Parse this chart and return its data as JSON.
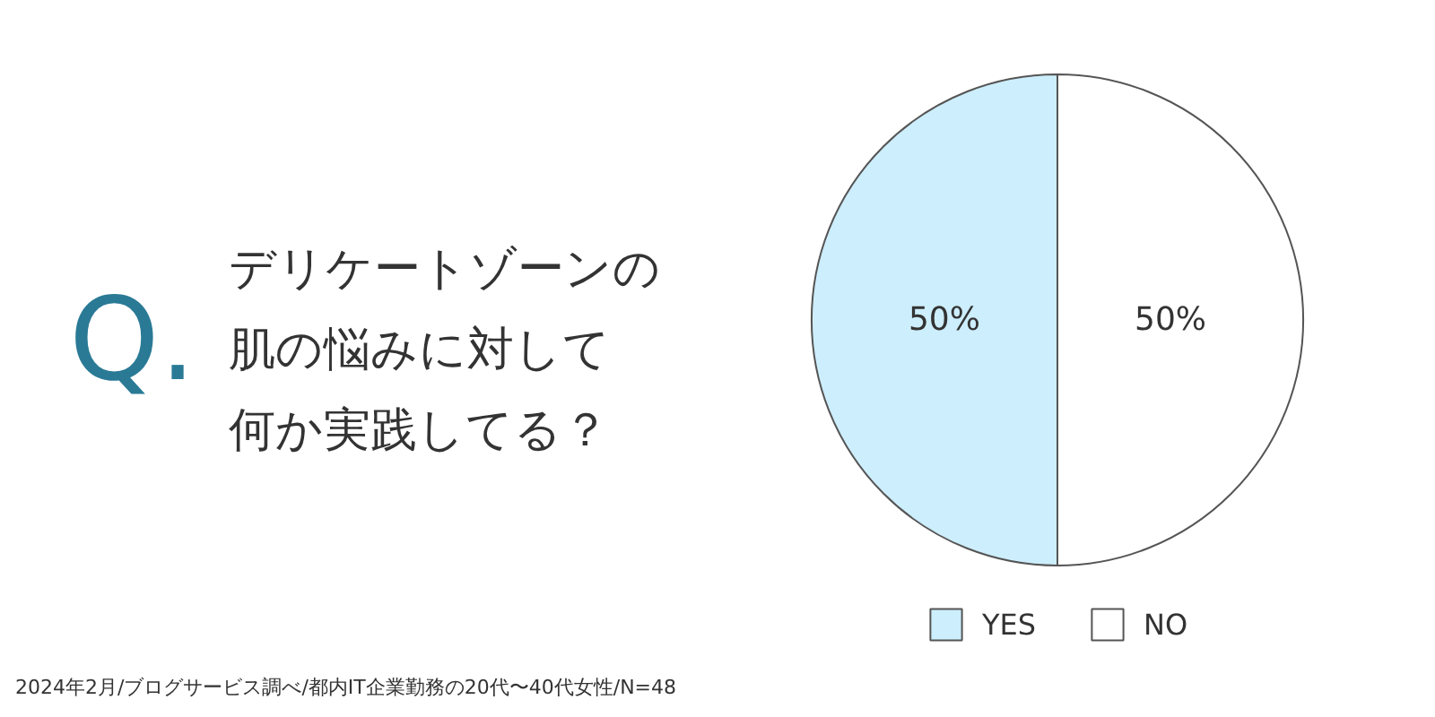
{
  "chart_data": {
    "type": "pie",
    "title": "デリケートゾーンの肌の悩みに対して何か実践してる？",
    "categories": [
      "YES",
      "NO"
    ],
    "values": [
      50,
      50
    ],
    "colors": [
      "#cdeefd",
      "#ffffff"
    ],
    "value_labels": [
      "50%",
      "50%"
    ],
    "legend": "bottom",
    "annotations": [
      "Q.",
      "2024年2月/ブログサービス調べ/都内IT企業勤務の20代〜40代女性/N=48"
    ]
  }
}
